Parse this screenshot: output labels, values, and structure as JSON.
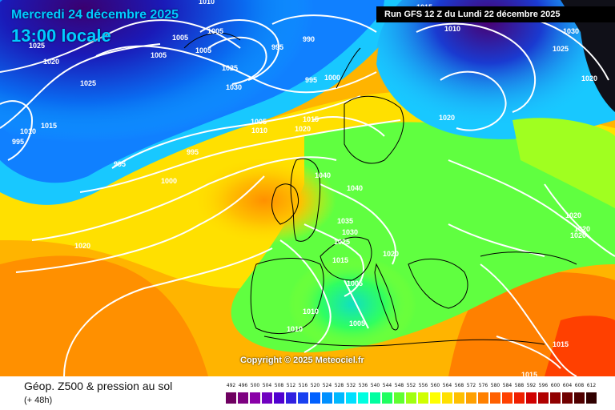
{
  "header": {
    "date": "Mercredi 24 décembre 2025",
    "time": "13:00 locale",
    "run": "Run GFS 12 Z du Lundi 22 décembre 2025"
  },
  "copyright": "Copyright © 2025 Meteociel.fr",
  "footer": {
    "title": "Géop. Z500 & pression au sol",
    "subtitle": "(+ 48h)"
  },
  "legend": {
    "values": [
      "492",
      "496",
      "500",
      "504",
      "508",
      "512",
      "516",
      "520",
      "524",
      "528",
      "532",
      "536",
      "540",
      "544",
      "548",
      "552",
      "556",
      "560",
      "564",
      "568",
      "572",
      "576",
      "580",
      "584",
      "588",
      "592",
      "596",
      "600",
      "604",
      "608",
      "612"
    ],
    "colors": [
      "#6e0060",
      "#7d0080",
      "#8a00a8",
      "#7000c0",
      "#5000d0",
      "#3020e0",
      "#1840f0",
      "#0060ff",
      "#0090ff",
      "#00b8ff",
      "#00e0ff",
      "#00ffe0",
      "#00ffa0",
      "#20ff60",
      "#60ff30",
      "#a0ff10",
      "#d0ff00",
      "#ffff00",
      "#ffe000",
      "#ffc000",
      "#ffa000",
      "#ff8000",
      "#ff6000",
      "#ff4000",
      "#f02000",
      "#d00000",
      "#b00000",
      "#900000",
      "#700000",
      "#500000",
      "#300000"
    ]
  },
  "pressure_labels": [
    "1010",
    "1005",
    "1005",
    "1025",
    "1005",
    "1005",
    "1025",
    "1030",
    "995",
    "990",
    "1020",
    "1015",
    "1010",
    "1030",
    "1025",
    "1020",
    "995",
    "1000",
    "1025",
    "1020",
    "1015",
    "1005",
    "1010",
    "1020",
    "1015",
    "1020",
    "1010",
    "995",
    "995",
    "995",
    "1000",
    "1040",
    "1040",
    "1035",
    "1030",
    "1025",
    "1015",
    "1020",
    "1005",
    "1005",
    "1010",
    "1010",
    "1020",
    "1020",
    "1020",
    "1020",
    "1015",
    "1015"
  ]
}
